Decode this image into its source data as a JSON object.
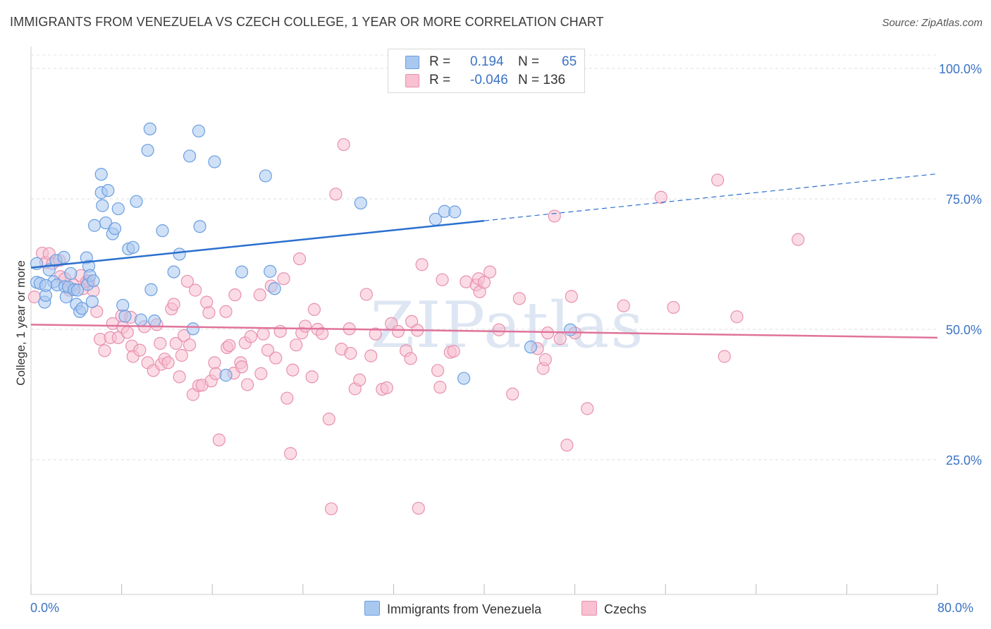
{
  "title": "IMMIGRANTS FROM VENEZUELA VS CZECH COLLEGE, 1 YEAR OR MORE CORRELATION CHART",
  "source": "Source: ZipAtlas.com",
  "watermark": "ZIPatlas",
  "legend_top": [
    {
      "r_label": "R =",
      "r_value": "0.194",
      "n_label": "N =",
      "n_value": "65",
      "color": "#a9c8f0",
      "border": "#6a9ee0"
    },
    {
      "r_label": "R =",
      "r_value": "-0.046",
      "n_label": "N = 136",
      "n_value": "",
      "color": "#f8c0d0",
      "border": "#e890b0"
    }
  ],
  "legend_bottom": [
    {
      "label": "Immigrants from Venezuela",
      "color": "#a9c8f0",
      "border": "#6a9ee0"
    },
    {
      "label": "Czechs",
      "color": "#f8c0d0",
      "border": "#e890b0"
    }
  ],
  "chart_data": {
    "type": "scatter",
    "title": "IMMIGRANTS FROM VENEZUELA VS CZECH COLLEGE, 1 YEAR OR MORE CORRELATION CHART",
    "xlabel": "",
    "ylabel": "College, 1 year or more",
    "xlim": [
      0,
      80
    ],
    "ylim": [
      0,
      105
    ],
    "x_tick_labels": [
      "0.0%",
      "80.0%"
    ],
    "y_ticks": [
      25,
      50,
      75,
      100
    ],
    "y_tick_labels": [
      "25.0%",
      "50.0%",
      "75.0%",
      "100.0%"
    ],
    "grid": true,
    "series": [
      {
        "name": "Immigrants from Venezuela",
        "color": "#6a9ee0",
        "fill": "#a9c8f0",
        "trend": {
          "x0": 0,
          "y0": 61.8,
          "x1": 40,
          "y1": 70.8,
          "dashed_to": 80,
          "dashed_y": 79.8,
          "color": "#2a6fcf"
        },
        "points": [
          [
            0.5,
            62.6
          ],
          [
            0.5,
            59.0
          ],
          [
            0.8,
            58.8
          ],
          [
            1.2,
            55.2
          ],
          [
            1.3,
            56.5
          ],
          [
            1.6,
            61.4
          ],
          [
            2.0,
            59.1
          ],
          [
            2.2,
            63.2
          ],
          [
            2.3,
            58.5
          ],
          [
            2.9,
            63.8
          ],
          [
            3.0,
            58.2
          ],
          [
            3.1,
            56.2
          ],
          [
            3.3,
            58.1
          ],
          [
            3.5,
            60.7
          ],
          [
            3.8,
            57.6
          ],
          [
            4.0,
            54.8
          ],
          [
            4.1,
            57.5
          ],
          [
            4.3,
            53.4
          ],
          [
            4.5,
            54.0
          ],
          [
            4.9,
            63.7
          ],
          [
            5.0,
            58.6
          ],
          [
            5.1,
            62.1
          ],
          [
            5.2,
            60.3
          ],
          [
            5.4,
            55.3
          ],
          [
            5.5,
            59.3
          ],
          [
            5.6,
            69.9
          ],
          [
            6.2,
            79.7
          ],
          [
            6.2,
            76.2
          ],
          [
            6.3,
            73.7
          ],
          [
            6.6,
            70.4
          ],
          [
            6.8,
            76.6
          ],
          [
            7.2,
            68.3
          ],
          [
            7.4,
            69.3
          ],
          [
            7.7,
            73.1
          ],
          [
            8.1,
            54.6
          ],
          [
            8.3,
            52.5
          ],
          [
            8.6,
            65.4
          ],
          [
            9.0,
            65.7
          ],
          [
            9.3,
            74.5
          ],
          [
            9.7,
            51.8
          ],
          [
            10.3,
            84.3
          ],
          [
            10.5,
            88.4
          ],
          [
            10.6,
            57.6
          ],
          [
            10.9,
            51.6
          ],
          [
            11.6,
            68.9
          ],
          [
            12.6,
            61.0
          ],
          [
            13.1,
            64.4
          ],
          [
            14.0,
            83.2
          ],
          [
            14.3,
            50.1
          ],
          [
            14.8,
            88.0
          ],
          [
            14.9,
            69.7
          ],
          [
            16.2,
            82.1
          ],
          [
            17.2,
            41.2
          ],
          [
            18.6,
            61.0
          ],
          [
            20.7,
            79.4
          ],
          [
            21.1,
            61.1
          ],
          [
            21.5,
            57.8
          ],
          [
            29.1,
            74.2
          ],
          [
            35.7,
            71.1
          ],
          [
            36.5,
            72.6
          ],
          [
            37.4,
            72.5
          ],
          [
            38.2,
            40.6
          ],
          [
            44.1,
            46.6
          ],
          [
            47.6,
            49.9
          ],
          [
            1.3,
            58.4
          ]
        ]
      },
      {
        "name": "Czechs",
        "color": "#e890b0",
        "fill": "#f8c0d0",
        "trend": {
          "x0": 0,
          "y0": 50.9,
          "x1": 80,
          "y1": 48.4,
          "color": "#e0739b"
        },
        "points": [
          [
            0.3,
            56.2
          ],
          [
            1.0,
            64.6
          ],
          [
            1.3,
            62.8
          ],
          [
            1.6,
            64.5
          ],
          [
            1.9,
            62.6
          ],
          [
            2.5,
            63.2
          ],
          [
            2.6,
            60.1
          ],
          [
            3.0,
            59.7
          ],
          [
            3.4,
            57.5
          ],
          [
            3.7,
            58.5
          ],
          [
            4.4,
            60.3
          ],
          [
            4.6,
            57.8
          ],
          [
            4.9,
            59.1
          ],
          [
            5.1,
            59.3
          ],
          [
            5.5,
            57.4
          ],
          [
            5.8,
            53.4
          ],
          [
            6.1,
            48.1
          ],
          [
            6.5,
            45.9
          ],
          [
            7.0,
            48.4
          ],
          [
            7.2,
            51.1
          ],
          [
            7.7,
            48.4
          ],
          [
            8.0,
            52.6
          ],
          [
            8.1,
            50.4
          ],
          [
            8.5,
            49.4
          ],
          [
            8.8,
            52.3
          ],
          [
            8.9,
            46.8
          ],
          [
            9.0,
            44.8
          ],
          [
            9.6,
            46.0
          ],
          [
            10.0,
            50.5
          ],
          [
            10.3,
            43.6
          ],
          [
            10.8,
            42.1
          ],
          [
            11.1,
            50.9
          ],
          [
            11.4,
            47.3
          ],
          [
            11.5,
            43.3
          ],
          [
            11.8,
            44.3
          ],
          [
            12.1,
            43.6
          ],
          [
            12.4,
            53.9
          ],
          [
            12.6,
            54.8
          ],
          [
            12.8,
            47.3
          ],
          [
            13.1,
            40.9
          ],
          [
            13.3,
            45.0
          ],
          [
            13.5,
            48.8
          ],
          [
            13.8,
            59.2
          ],
          [
            14.0,
            47.0
          ],
          [
            14.3,
            37.5
          ],
          [
            14.5,
            57.5
          ],
          [
            14.8,
            39.2
          ],
          [
            15.1,
            39.3
          ],
          [
            15.5,
            55.2
          ],
          [
            15.7,
            53.2
          ],
          [
            15.9,
            40.1
          ],
          [
            16.2,
            43.6
          ],
          [
            16.3,
            41.5
          ],
          [
            16.6,
            28.8
          ],
          [
            17.2,
            53.4
          ],
          [
            17.3,
            46.5
          ],
          [
            17.5,
            46.9
          ],
          [
            17.9,
            41.6
          ],
          [
            18.0,
            56.6
          ],
          [
            18.5,
            43.6
          ],
          [
            18.6,
            42.8
          ],
          [
            18.9,
            47.4
          ],
          [
            19.1,
            39.4
          ],
          [
            19.4,
            48.6
          ],
          [
            20.2,
            56.6
          ],
          [
            20.3,
            41.5
          ],
          [
            20.5,
            49.1
          ],
          [
            20.9,
            46.0
          ],
          [
            21.2,
            58.3
          ],
          [
            21.6,
            44.5
          ],
          [
            22.0,
            49.6
          ],
          [
            22.3,
            59.7
          ],
          [
            22.6,
            36.8
          ],
          [
            22.9,
            26.2
          ],
          [
            23.1,
            42.2
          ],
          [
            23.4,
            47.0
          ],
          [
            23.7,
            63.5
          ],
          [
            23.9,
            49.3
          ],
          [
            24.2,
            50.6
          ],
          [
            24.8,
            40.9
          ],
          [
            25.0,
            53.8
          ],
          [
            25.3,
            50.0
          ],
          [
            25.7,
            49.2
          ],
          [
            26.3,
            32.8
          ],
          [
            26.5,
            15.6
          ],
          [
            26.9,
            75.9
          ],
          [
            27.4,
            46.2
          ],
          [
            27.6,
            85.4
          ],
          [
            28.1,
            50.1
          ],
          [
            28.2,
            45.4
          ],
          [
            28.6,
            38.6
          ],
          [
            29.0,
            40.3
          ],
          [
            29.6,
            56.7
          ],
          [
            30.0,
            44.9
          ],
          [
            30.4,
            49.1
          ],
          [
            31.0,
            38.5
          ],
          [
            31.4,
            38.8
          ],
          [
            31.8,
            51.1
          ],
          [
            32.4,
            49.6
          ],
          [
            33.1,
            45.9
          ],
          [
            33.5,
            44.4
          ],
          [
            33.6,
            51.5
          ],
          [
            34.1,
            49.8
          ],
          [
            34.2,
            15.7
          ],
          [
            34.5,
            62.4
          ],
          [
            35.9,
            42.1
          ],
          [
            36.1,
            38.9
          ],
          [
            36.3,
            59.5
          ],
          [
            37.0,
            45.6
          ],
          [
            37.3,
            45.8
          ],
          [
            38.4,
            59.1
          ],
          [
            39.3,
            58.5
          ],
          [
            39.5,
            59.7
          ],
          [
            39.6,
            57.2
          ],
          [
            40.0,
            59.0
          ],
          [
            40.5,
            61.0
          ],
          [
            41.3,
            49.9
          ],
          [
            42.5,
            37.6
          ],
          [
            43.1,
            55.9
          ],
          [
            44.7,
            46.3
          ],
          [
            45.2,
            42.5
          ],
          [
            45.4,
            44.2
          ],
          [
            45.6,
            49.3
          ],
          [
            46.2,
            71.7
          ],
          [
            46.7,
            48.2
          ],
          [
            47.3,
            27.8
          ],
          [
            47.7,
            56.3
          ],
          [
            48.0,
            49.3
          ],
          [
            49.1,
            34.8
          ],
          [
            52.3,
            54.5
          ],
          [
            55.6,
            75.3
          ],
          [
            56.7,
            54.2
          ],
          [
            60.6,
            78.6
          ],
          [
            61.2,
            44.8
          ],
          [
            62.3,
            52.4
          ],
          [
            67.7,
            67.2
          ]
        ]
      }
    ]
  }
}
